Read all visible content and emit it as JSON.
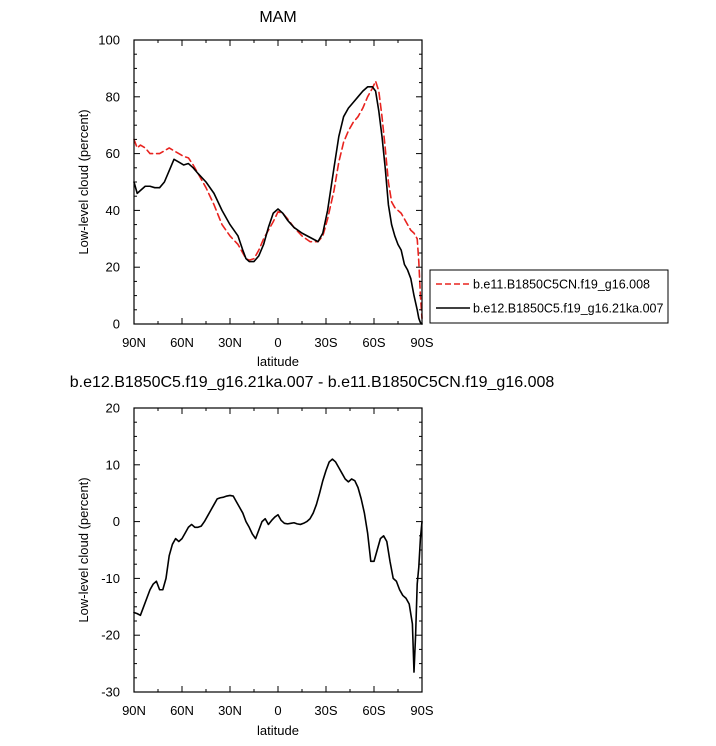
{
  "chart_data": [
    {
      "type": "line",
      "title": "MAM",
      "xlabel": "latitude",
      "ylabel": "Low-level cloud (percent)",
      "xlim": [
        90,
        -90
      ],
      "ylim": [
        0,
        100
      ],
      "xticks": [
        {
          "value": 90,
          "label": "90N"
        },
        {
          "value": 60,
          "label": "60N"
        },
        {
          "value": 30,
          "label": "30N"
        },
        {
          "value": 0,
          "label": "0"
        },
        {
          "value": -30,
          "label": "30S"
        },
        {
          "value": -60,
          "label": "60S"
        },
        {
          "value": -90,
          "label": "90S"
        }
      ],
      "yticks": [
        0,
        20,
        40,
        60,
        80,
        100
      ],
      "grid": false,
      "legend": "right",
      "series": [
        {
          "name": "b.e11.B1850C5CN.f19_g16.008",
          "color": "#e8231f",
          "dash": "dashed",
          "x": [
            90,
            88,
            86,
            83,
            80,
            77,
            74,
            71,
            68,
            65,
            62,
            59,
            56,
            53,
            50,
            45,
            40,
            35,
            30,
            25,
            22,
            20,
            18,
            15,
            12,
            9,
            6,
            3,
            0,
            -3,
            -6,
            -10,
            -15,
            -20,
            -25,
            -28,
            -31,
            -35,
            -38,
            -41,
            -44,
            -47,
            -50,
            -53,
            -56,
            -59,
            -61,
            -63,
            -65,
            -67,
            -69,
            -71,
            -73,
            -75,
            -77,
            -79,
            -81,
            -83,
            -85,
            -87,
            -88,
            -89,
            -90
          ],
          "y": [
            65,
            62,
            63,
            62,
            60,
            60,
            60,
            61,
            62,
            61,
            60,
            59,
            58.5,
            56,
            53,
            48,
            42,
            35,
            31,
            28,
            25,
            23,
            22.5,
            23,
            26,
            30,
            33,
            36,
            39.5,
            39,
            37,
            34,
            31,
            29,
            29,
            31,
            37,
            47,
            57,
            64,
            68,
            71,
            73,
            76,
            80,
            83,
            85.5,
            82,
            73,
            62,
            50,
            43,
            41,
            40,
            39,
            37,
            35,
            33,
            32,
            30,
            22,
            10,
            2
          ]
        },
        {
          "name": "b.e12.B1850C5.f19_g16.21ka.007",
          "color": "#000000",
          "dash": "solid",
          "x": [
            90,
            88,
            86,
            83,
            80,
            77,
            74,
            71,
            68,
            65,
            62,
            59,
            56,
            53,
            50,
            45,
            40,
            35,
            30,
            25,
            22,
            20,
            18,
            15,
            12,
            9,
            6,
            3,
            0,
            -3,
            -6,
            -10,
            -15,
            -20,
            -25,
            -28,
            -31,
            -35,
            -38,
            -41,
            -44,
            -47,
            -50,
            -53,
            -56,
            -59,
            -61,
            -63,
            -65,
            -67,
            -69,
            -71,
            -73,
            -75,
            -77,
            -79,
            -81,
            -83,
            -85,
            -87,
            -88,
            -89,
            -90
          ],
          "y": [
            50,
            46,
            47,
            48.5,
            48.5,
            48,
            48,
            50,
            54,
            58,
            57,
            56,
            56.5,
            55,
            53,
            50,
            46,
            40,
            35,
            31,
            26,
            23,
            22,
            22,
            24,
            28,
            34,
            39,
            40.5,
            39,
            36.5,
            34,
            32,
            30.5,
            29,
            32,
            40,
            55,
            66,
            73,
            76,
            78,
            80,
            82,
            83.5,
            83.5,
            82,
            75,
            66,
            55,
            42,
            35,
            31,
            28,
            26,
            21,
            19,
            16,
            10,
            5,
            2,
            0.5,
            0
          ]
        }
      ]
    },
    {
      "type": "line",
      "title": "b.e12.B1850C5.f19_g16.21ka.007 - b.e11.B1850C5CN.f19_g16.008",
      "xlabel": "latitude",
      "ylabel": "Low-level cloud (percent)",
      "xlim": [
        90,
        -90
      ],
      "ylim": [
        -30,
        20
      ],
      "xticks": [
        {
          "value": 90,
          "label": "90N"
        },
        {
          "value": 60,
          "label": "60N"
        },
        {
          "value": 30,
          "label": "30N"
        },
        {
          "value": 0,
          "label": "0"
        },
        {
          "value": -30,
          "label": "30S"
        },
        {
          "value": -60,
          "label": "60S"
        },
        {
          "value": -90,
          "label": "90S"
        }
      ],
      "yticks": [
        -30,
        -20,
        -10,
        0,
        10,
        20
      ],
      "grid": false,
      "series": [
        {
          "name": "",
          "color": "#000000",
          "dash": "solid",
          "x": [
            90,
            88,
            86,
            84,
            82,
            80,
            78,
            76,
            74,
            72,
            70,
            68,
            66,
            64,
            62,
            60,
            58,
            56,
            54,
            52,
            50,
            48,
            46,
            44,
            42,
            40,
            38,
            36,
            34,
            32,
            30,
            28,
            26,
            24,
            22,
            20,
            18,
            16,
            14,
            12,
            10,
            8,
            6,
            4,
            2,
            0,
            -2,
            -4,
            -6,
            -8,
            -10,
            -12,
            -14,
            -16,
            -18,
            -20,
            -22,
            -24,
            -26,
            -28,
            -30,
            -32,
            -34,
            -36,
            -38,
            -40,
            -42,
            -44,
            -46,
            -48,
            -50,
            -52,
            -54,
            -56,
            -58,
            -60,
            -62,
            -64,
            -66,
            -68,
            -70,
            -72,
            -74,
            -76,
            -78,
            -80,
            -82,
            -84,
            -85,
            -86,
            -87,
            -88,
            -89,
            -90
          ],
          "y": [
            -16,
            -16.2,
            -16.5,
            -15,
            -13.5,
            -12,
            -11,
            -10.5,
            -12,
            -12,
            -10,
            -6,
            -4,
            -3,
            -3.5,
            -3,
            -2,
            -1,
            -0.5,
            -1,
            -1,
            -0.8,
            0,
            1,
            2,
            3,
            4,
            4.2,
            4.3,
            4.5,
            4.6,
            4.5,
            3.5,
            2.5,
            1.5,
            0,
            -1,
            -2.2,
            -3,
            -1.5,
            0,
            0.5,
            -0.5,
            0.2,
            0.8,
            1.2,
            0.2,
            -0.3,
            -0.4,
            -0.3,
            -0.2,
            -0.4,
            -0.5,
            -0.3,
            0,
            0.5,
            1.5,
            3,
            5,
            7.2,
            9,
            10.5,
            11,
            10.5,
            9.5,
            8.5,
            7.5,
            7,
            7.5,
            7.2,
            6,
            4,
            1.5,
            -2,
            -7,
            -7,
            -5,
            -3,
            -2.5,
            -3.5,
            -7,
            -10,
            -10.5,
            -12,
            -13,
            -13.5,
            -14.5,
            -18,
            -26.5,
            -20,
            -11,
            -8,
            -3,
            0
          ]
        }
      ]
    }
  ]
}
